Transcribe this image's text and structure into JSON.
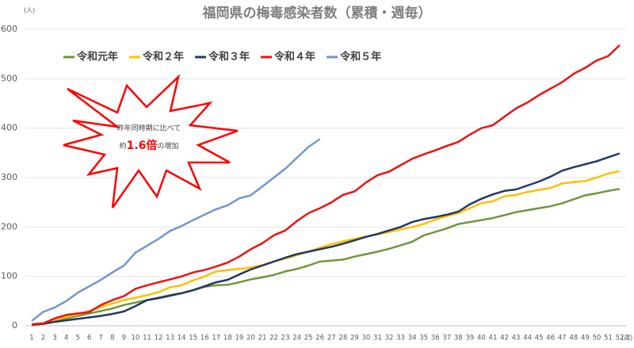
{
  "chart_data": {
    "type": "line",
    "title": "福岡県の梅毒感染者数（累積・週毎）",
    "y_label": "(人)",
    "x_label": "(週)",
    "annotation": [
      "昨年同時期に比べて",
      "約",
      "1.6倍",
      "の増加"
    ],
    "categories": [
      "1",
      "2",
      "3",
      "4",
      "5",
      "6",
      "7",
      "8",
      "9",
      "10",
      "11",
      "12",
      "13",
      "14",
      "15",
      "16",
      "17",
      "18",
      "19",
      "20",
      "21",
      "22",
      "23",
      "24",
      "25",
      "26",
      "27",
      "28",
      "29",
      "30",
      "31",
      "32",
      "33",
      "34",
      "35",
      "36",
      "37",
      "38",
      "39",
      "40",
      "41",
      "42",
      "43",
      "44",
      "45",
      "46",
      "47",
      "48",
      "49",
      "50",
      "51",
      "52"
    ],
    "ylim": [
      0,
      600
    ],
    "yticks": [
      0,
      100,
      200,
      300,
      400,
      500,
      600
    ],
    "grid": true,
    "series": [
      {
        "name": "令和元年",
        "color": "#70963c",
        "values": [
          2,
          4,
          10,
          15,
          20,
          25,
          30,
          35,
          42,
          47,
          52,
          57,
          62,
          66,
          72,
          79,
          82,
          83,
          88,
          94,
          98,
          103,
          110,
          115,
          122,
          130,
          132,
          134,
          140,
          145,
          150,
          156,
          163,
          170,
          183,
          190,
          197,
          206,
          210,
          214,
          218,
          224,
          230,
          234,
          238,
          242,
          248,
          256,
          264,
          268,
          273,
          277
        ]
      },
      {
        "name": "令和２年",
        "color": "#ffc000",
        "values": [
          3,
          5,
          12,
          18,
          23,
          30,
          38,
          45,
          52,
          57,
          62,
          68,
          78,
          82,
          92,
          100,
          110,
          113,
          115,
          118,
          123,
          130,
          136,
          143,
          150,
          158,
          165,
          171,
          176,
          181,
          185,
          190,
          195,
          200,
          206,
          215,
          222,
          228,
          238,
          248,
          252,
          262,
          265,
          271,
          275,
          279,
          288,
          291,
          293,
          300,
          308,
          313
        ]
      },
      {
        "name": "令和３年",
        "color": "#203864",
        "values": [
          2,
          4,
          8,
          11,
          14,
          17,
          20,
          24,
          29,
          40,
          52,
          56,
          61,
          66,
          72,
          80,
          88,
          93,
          104,
          114,
          122,
          130,
          138,
          145,
          150,
          155,
          160,
          166,
          173,
          180,
          186,
          193,
          200,
          210,
          216,
          220,
          225,
          231,
          246,
          257,
          266,
          273,
          276,
          284,
          292,
          302,
          314,
          321,
          327,
          333,
          341,
          349
        ]
      },
      {
        "name": "令和４年",
        "color": "#ee1111",
        "values": [
          3,
          5,
          15,
          22,
          25,
          28,
          42,
          52,
          60,
          75,
          82,
          88,
          94,
          100,
          108,
          113,
          120,
          128,
          140,
          155,
          167,
          183,
          193,
          212,
          228,
          238,
          250,
          265,
          272,
          290,
          305,
          312,
          325,
          338,
          347,
          355,
          364,
          372,
          387,
          400,
          406,
          423,
          440,
          452,
          467,
          480,
          493,
          510,
          522,
          537,
          546,
          568
        ]
      },
      {
        "name": "令和５年",
        "color": "#7396d2",
        "values": [
          10,
          28,
          37,
          50,
          67,
          80,
          93,
          108,
          122,
          148,
          162,
          176,
          192,
          202,
          214,
          225,
          236,
          244,
          258,
          264,
          282,
          300,
          318,
          340,
          362,
          378,
          null,
          null,
          null,
          null,
          null,
          null,
          null,
          null,
          null,
          null,
          null,
          null,
          null,
          null,
          null,
          null,
          null,
          null,
          null,
          null,
          null,
          null,
          null,
          null,
          null,
          null
        ]
      }
    ]
  }
}
